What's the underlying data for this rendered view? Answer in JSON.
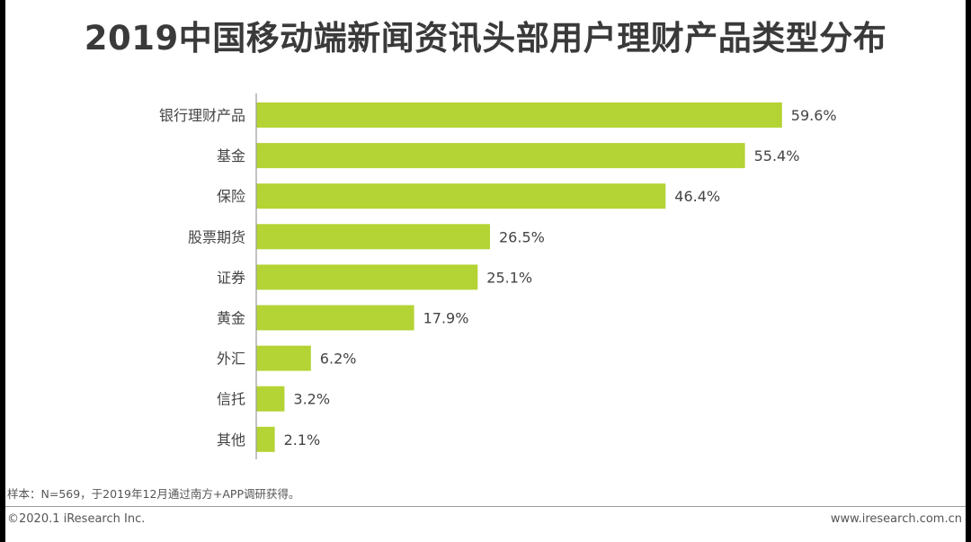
{
  "title": "2019中国移动端新闻资讯头部用户理财产品类型分布",
  "note": "样本：N=569，于2019年12月通过南方+APP调研获得。",
  "footer": {
    "copyright": "©2020.1 iResearch Inc.",
    "website": "www.iresearch.com.cn"
  },
  "colors": {
    "bar": "#b4d334",
    "axis": "#9a9a9a",
    "label": "#444444"
  },
  "chart_data": {
    "type": "bar",
    "orientation": "horizontal",
    "title": "2019中国移动端新闻资讯头部用户理财产品类型分布",
    "categories": [
      "银行理财产品",
      "基金",
      "保险",
      "股票期货",
      "证券",
      "黄金",
      "外汇",
      "信托",
      "其他"
    ],
    "values": [
      59.6,
      55.4,
      46.4,
      26.5,
      25.1,
      17.9,
      6.2,
      3.2,
      2.1
    ],
    "value_labels": [
      "59.6%",
      "55.4%",
      "46.4%",
      "26.5%",
      "25.1%",
      "17.9%",
      "6.2%",
      "3.2%",
      "2.1%"
    ],
    "xlabel": "",
    "ylabel": "",
    "xlim": [
      0,
      64
    ],
    "grid": false,
    "legend": "none"
  }
}
